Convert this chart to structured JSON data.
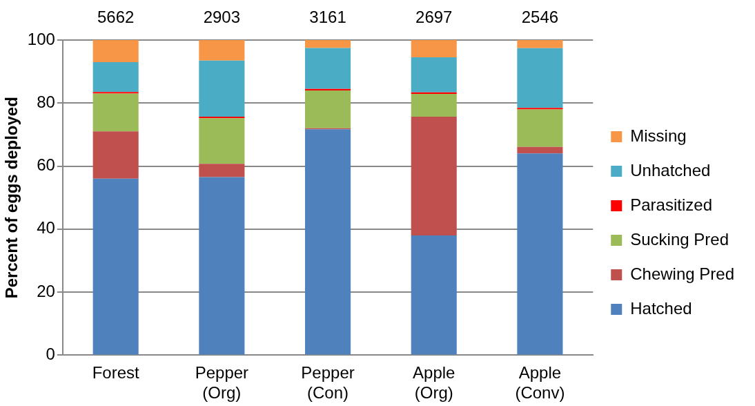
{
  "chart_data": {
    "type": "bar",
    "stacked": true,
    "ylabel": "Percent of eggs deployed",
    "categories": [
      "Forest",
      "Pepper (Org)",
      "Pepper (Con)",
      "Apple (Org)",
      "Apple (Conv)"
    ],
    "series": [
      {
        "name": "Hatched",
        "color": "#4f81bd",
        "values": [
          56,
          56.5,
          71.7,
          38,
          64
        ]
      },
      {
        "name": "Chewing Pred",
        "color": "#c0504d",
        "values": [
          15,
          4.2,
          0.3,
          37.7,
          2.1
        ]
      },
      {
        "name": "Sucking Pred",
        "color": "#9bbb59",
        "values": [
          12,
          14.5,
          12,
          7.2,
          11.9
        ]
      },
      {
        "name": "Parasitized",
        "color": "#ff0000",
        "values": [
          0.5,
          0.5,
          0.5,
          0.5,
          0.5
        ]
      },
      {
        "name": "Unhatched",
        "color": "#4bacc6",
        "values": [
          9.5,
          17.8,
          13,
          11.1,
          18.9
        ]
      },
      {
        "name": "Missing",
        "color": "#f79646",
        "values": [
          7,
          6.5,
          2.5,
          5.5,
          2.6
        ]
      }
    ],
    "ylim": [
      0,
      100
    ],
    "yticks": [
      0,
      20,
      40,
      60,
      80,
      100
    ],
    "grid": "y",
    "legend": "right",
    "annotations": [
      "5662",
      "2903",
      "3161",
      "2697",
      "2546"
    ]
  }
}
